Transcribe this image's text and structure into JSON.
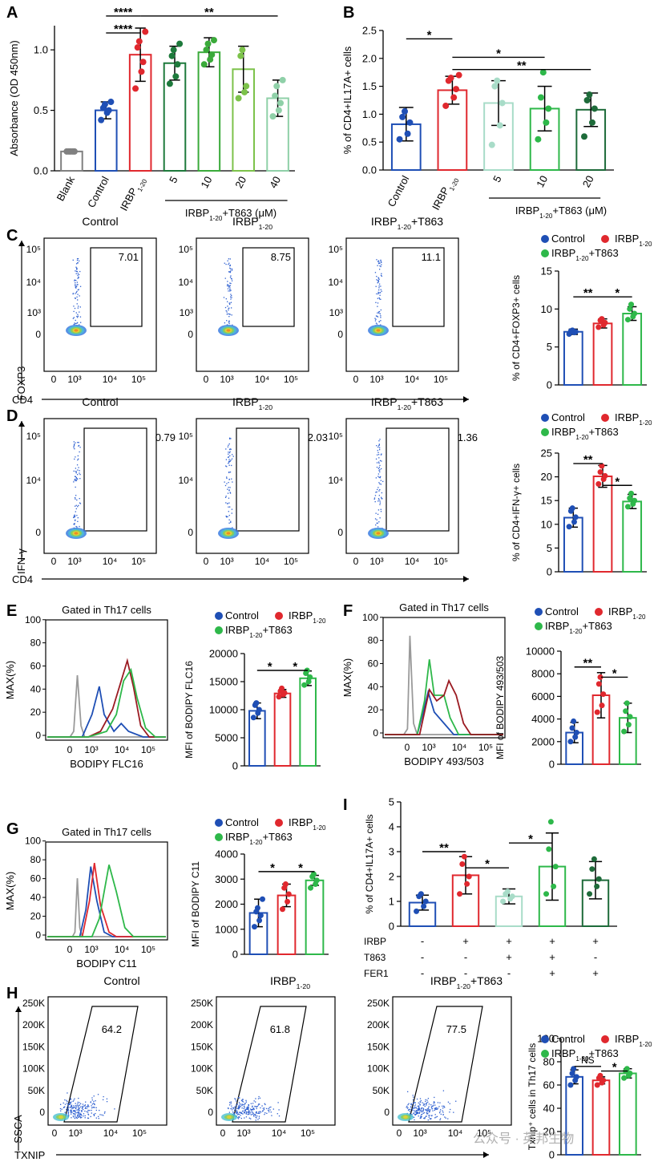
{
  "colors": {
    "blank": "#808080",
    "control": "#1f4fb5",
    "irbp": "#e0282e",
    "t5": "#1e7a3c",
    "t10": "#3aaa3a",
    "t20": "#7cc24a",
    "t40": "#8fd0a8",
    "green": "#2eb84a",
    "dkgreen": "#1e6b3a",
    "ltgreen": "#a8dcc8",
    "dred": "#9b1b22",
    "gray": "#9a9a9a"
  },
  "chart_data": [
    {
      "panel": "A",
      "type": "bar",
      "ylabel": "Absorbance (OD 450nm)",
      "ylim": [
        0,
        1.2
      ],
      "yticks": [
        "0.0",
        "0.5",
        "1.0"
      ],
      "categories": [
        "Blank",
        "Control",
        "IRBP",
        "5",
        "10",
        "20",
        "40"
      ],
      "cat_sub": [
        "",
        "",
        "1-20",
        "",
        "",
        "",
        ""
      ],
      "values": [
        0.16,
        0.5,
        0.96,
        0.89,
        0.98,
        0.84,
        0.6
      ],
      "errors": [
        0.01,
        0.07,
        0.22,
        0.14,
        0.12,
        0.19,
        0.15
      ],
      "points": [
        [
          0.16,
          0.16,
          0.16,
          0.16,
          0.16
        ],
        [
          0.42,
          0.48,
          0.5,
          0.52,
          0.55,
          0.57
        ],
        [
          0.68,
          0.82,
          0.9,
          1.02,
          1.07,
          1.15
        ],
        [
          0.72,
          0.78,
          0.88,
          0.95,
          1.0,
          1.05
        ],
        [
          0.88,
          0.92,
          0.96,
          1.0,
          1.05,
          1.08
        ],
        [
          0.6,
          0.65,
          0.7,
          0.95,
          1.0
        ],
        [
          0.45,
          0.5,
          0.56,
          0.62,
          0.7,
          0.75
        ]
      ],
      "colors": [
        "blank",
        "control",
        "irbp",
        "t5",
        "t10",
        "t20",
        "t40"
      ],
      "group_label": "IRBP",
      "group_sub": "1-20",
      "group_suffix": "+T863 (μM)",
      "sig": [
        {
          "a": 1,
          "b": 2,
          "y": 1.28,
          "label": "****"
        },
        {
          "a": 1,
          "b": 2,
          "y": 1.14,
          "label": "****"
        },
        {
          "a": 2,
          "b": 6,
          "y": 1.28,
          "label": "**"
        }
      ]
    },
    {
      "panel": "B",
      "type": "bar",
      "ylabel": "% of CD4+IL17A+ cells",
      "ylim": [
        0,
        2.5
      ],
      "yticks": [
        "0.0",
        "0.5",
        "1.0",
        "1.5",
        "2.0",
        "2.5"
      ],
      "categories": [
        "Control",
        "IRBP",
        "5",
        "10",
        "20"
      ],
      "cat_sub": [
        "",
        "1-20",
        "",
        "",
        ""
      ],
      "values": [
        0.82,
        1.43,
        1.2,
        1.1,
        1.08
      ],
      "errors": [
        0.3,
        0.25,
        0.4,
        0.4,
        0.3
      ],
      "points": [
        [
          0.55,
          0.65,
          0.85,
          0.95,
          1.05
        ],
        [
          1.15,
          1.3,
          1.45,
          1.6,
          1.65,
          1.7
        ],
        [
          0.45,
          0.8,
          1.2,
          1.5,
          1.6
        ],
        [
          0.55,
          0.85,
          1.1,
          1.3,
          1.75
        ],
        [
          0.6,
          0.85,
          1.1,
          1.25,
          1.35
        ]
      ],
      "colors": [
        "control",
        "irbp",
        "ltgreen",
        "green",
        "dkgreen"
      ],
      "group_label": "IRBP",
      "group_sub": "1-20",
      "group_suffix": "+T863 (μM)",
      "sig": [
        {
          "a": 0,
          "b": 1,
          "y": 2.35,
          "label": "*"
        },
        {
          "a": 1,
          "b": 3,
          "y": 2.02,
          "label": "*"
        },
        {
          "a": 1,
          "b": 4,
          "y": 1.8,
          "label": "**"
        }
      ]
    },
    {
      "panel": "C",
      "type": "bar",
      "ylabel": "% of CD4+FOXP3+ cells",
      "ylim": [
        0,
        15
      ],
      "yticks": [
        "0",
        "5",
        "10",
        "15"
      ],
      "values": [
        7.0,
        8.1,
        9.4
      ],
      "errors": [
        0.35,
        0.6,
        0.9
      ],
      "points": [
        [
          6.7,
          6.9,
          7.0,
          7.1,
          7.2
        ],
        [
          7.6,
          7.9,
          8.2,
          8.5,
          8.7
        ],
        [
          8.6,
          9.0,
          9.4,
          10.0,
          10.6
        ]
      ],
      "colors": [
        "control",
        "irbp",
        "green"
      ],
      "sig": [
        {
          "a": 0,
          "b": 1,
          "y": 11.6,
          "label": "**"
        },
        {
          "a": 1,
          "b": 2,
          "y": 11.6,
          "label": "*"
        }
      ]
    },
    {
      "panel": "D",
      "type": "bar",
      "ylabel": "% of CD4+IFN-γ+ cells",
      "ylim": [
        0,
        25
      ],
      "yticks": [
        "0",
        "5",
        "10",
        "15",
        "20",
        "25"
      ],
      "values": [
        11.4,
        20.1,
        14.8
      ],
      "errors": [
        2.0,
        2.3,
        1.5
      ],
      "points": [
        [
          9.5,
          10.5,
          11.5,
          12.8,
          13.4
        ],
        [
          18.5,
          19.5,
          20.2,
          21.0,
          22.3
        ],
        [
          13.7,
          14.3,
          15.0,
          15.5,
          16.5
        ]
      ],
      "colors": [
        "control",
        "irbp",
        "green"
      ],
      "sig": [
        {
          "a": 0,
          "b": 1,
          "y": 22.8,
          "label": "**"
        },
        {
          "a": 1,
          "b": 2,
          "y": 18.2,
          "label": "*"
        }
      ]
    },
    {
      "panel": "E",
      "type": "bar",
      "ylabel": "MFI of BODIPY FLC16",
      "ylim": [
        0,
        20000
      ],
      "yticks": [
        "0",
        "5000",
        "10000",
        "15000",
        "20000"
      ],
      "values": [
        9800,
        12900,
        15600
      ],
      "errors": [
        1400,
        700,
        1300
      ],
      "points": [
        [
          8600,
          9400,
          10000,
          10800,
          11200
        ],
        [
          12300,
          12700,
          13000,
          13300,
          13800
        ],
        [
          14400,
          15000,
          15800,
          16500,
          17000
        ]
      ],
      "colors": [
        "control",
        "irbp",
        "green"
      ],
      "sig": [
        {
          "a": 0,
          "b": 1,
          "y": 17000,
          "label": "*"
        },
        {
          "a": 1,
          "b": 2,
          "y": 17000,
          "label": "*"
        }
      ]
    },
    {
      "panel": "F",
      "type": "bar",
      "ylabel": "MFI of BODIPY 493/503",
      "ylim": [
        0,
        10000
      ],
      "yticks": [
        "0",
        "2000",
        "4000",
        "6000",
        "8000",
        "10000"
      ],
      "values": [
        2800,
        6100,
        4100
      ],
      "errors": [
        900,
        2000,
        1300
      ],
      "points": [
        [
          2000,
          2400,
          2800,
          3200,
          3800
        ],
        [
          4600,
          5200,
          6200,
          7100,
          7700
        ],
        [
          2900,
          3500,
          4200,
          4700,
          5400
        ]
      ],
      "colors": [
        "control",
        "irbp",
        "green"
      ],
      "sig": [
        {
          "a": 0,
          "b": 1,
          "y": 8600,
          "label": "**"
        },
        {
          "a": 1,
          "b": 2,
          "y": 7700,
          "label": "*"
        }
      ]
    },
    {
      "panel": "G",
      "type": "bar",
      "ylabel": "MFI of BODIPY C11",
      "ylim": [
        0,
        4000
      ],
      "yticks": [
        "0",
        "1000",
        "2000",
        "3000",
        "4000"
      ],
      "values": [
        1650,
        2350,
        2950
      ],
      "errors": [
        550,
        450,
        200
      ],
      "points": [
        [
          1100,
          1350,
          1550,
          1700,
          1850,
          2200
        ],
        [
          1800,
          2100,
          2400,
          2650,
          2800
        ],
        [
          2650,
          2800,
          2950,
          3100,
          3200
        ]
      ],
      "colors": [
        "control",
        "irbp",
        "green"
      ],
      "sig": [
        {
          "a": 0,
          "b": 1,
          "y": 3300,
          "label": "*"
        },
        {
          "a": 1,
          "b": 2,
          "y": 3300,
          "label": "*"
        }
      ]
    },
    {
      "panel": "I",
      "type": "bar",
      "ylabel": "% of CD4+IL17A+ cells",
      "ylim": [
        0,
        5
      ],
      "yticks": [
        "0",
        "1",
        "2",
        "3",
        "4",
        "5"
      ],
      "values": [
        0.95,
        2.05,
        1.2,
        2.4,
        1.85
      ],
      "errors": [
        0.3,
        0.75,
        0.3,
        1.35,
        0.75
      ],
      "points": [
        [
          0.6,
          0.8,
          1.0,
          1.2,
          1.3
        ],
        [
          1.3,
          1.7,
          2.0,
          2.5,
          2.8
        ],
        [
          1.0,
          1.1,
          1.2,
          1.3,
          1.4
        ],
        [
          1.3,
          1.6,
          2.4,
          3.1,
          4.2
        ],
        [
          1.3,
          1.6,
          1.9,
          2.3,
          2.7
        ]
      ],
      "colors": [
        "control",
        "irbp",
        "ltgreen",
        "green",
        "dkgreen"
      ],
      "sig": [
        {
          "a": 0,
          "b": 1,
          "y": 3.0,
          "label": "**"
        },
        {
          "a": 1,
          "b": 2,
          "y": 2.35,
          "label": "*"
        },
        {
          "a": 2,
          "b": 3,
          "y": 3.35,
          "label": "*"
        }
      ],
      "treat_rows": [
        {
          "label": "IRBP",
          "vals": [
            "-",
            "+",
            "+",
            "+",
            "+"
          ]
        },
        {
          "label": "T863",
          "vals": [
            "-",
            "-",
            "+",
            "+",
            "-"
          ]
        },
        {
          "label": "FER1",
          "vals": [
            "-",
            "-",
            "-",
            "+",
            "+"
          ]
        }
      ]
    },
    {
      "panel": "H",
      "type": "bar",
      "ylabel": "Txnip⁺ cells in Th17 cells",
      "ylim": [
        0,
        100
      ],
      "yticks": [
        "0",
        "20",
        "40",
        "60",
        "80",
        "100"
      ],
      "values": [
        67,
        64,
        70
      ],
      "errors": [
        6,
        3,
        4
      ],
      "points": [
        [
          60,
          64,
          67,
          70,
          74
        ],
        [
          60,
          62,
          64,
          66,
          68
        ],
        [
          66,
          68,
          70,
          72,
          74
        ]
      ],
      "colors": [
        "control",
        "irbp",
        "green"
      ],
      "sig": [
        {
          "a": 0,
          "b": 1,
          "y": 76,
          "label": "NS"
        },
        {
          "a": 1,
          "b": 2,
          "y": 72,
          "label": "*"
        }
      ]
    }
  ],
  "panel_labels": [
    "A",
    "B",
    "C",
    "D",
    "E",
    "F",
    "G",
    "H",
    "I"
  ],
  "legend": {
    "control": "Control",
    "irbp": "IRBP",
    "irbp_sub": "1-20",
    "irbp_t": "IRBP",
    "irbp_t_suffix": "+T863"
  },
  "flow": {
    "titles": [
      "Control",
      "IRBP",
      "IRBP"
    ],
    "title_suffix": [
      "",
      "",
      "+T863"
    ],
    "C": {
      "gates": [
        "7.01",
        "8.75",
        "11.1"
      ],
      "ylabel": "FOXP3",
      "xlabel": "CD4",
      "yticks": [
        "10⁵",
        "10⁴",
        "10³",
        "0"
      ],
      "xticks": [
        "0",
        "10³",
        "10⁴",
        "10⁵"
      ]
    },
    "D": {
      "gates": [
        "0.79",
        "2.03",
        "1.36"
      ],
      "ylabel": "IFN-γ",
      "xlabel": "CD4",
      "yticks": [
        "10⁵",
        "10⁴",
        "0"
      ],
      "xticks": [
        "0",
        "10³",
        "10⁴",
        "10⁵"
      ]
    },
    "H": {
      "gates": [
        "64.2",
        "61.8",
        "77.5"
      ],
      "ylabel": "SSCA",
      "xlabel": "TXNIP",
      "yticks": [
        "250K",
        "200K",
        "150K",
        "100K",
        "50K",
        "0"
      ],
      "xticks": [
        "0",
        "10³",
        "10⁴",
        "10⁵"
      ]
    }
  },
  "histograms": {
    "gated": "Gated in Th17 cells",
    "ylabel": "MAX(%)",
    "yticks": [
      "0",
      "20",
      "40",
      "60",
      "80",
      "100"
    ],
    "xticks": [
      "0",
      "10³",
      "10⁴",
      "10⁵"
    ],
    "E": {
      "xlabel": "BODIPY FLC16"
    },
    "F": {
      "xlabel": "BODIPY 493/503"
    },
    "G": {
      "xlabel": "BODIPY C11"
    }
  },
  "watermark": "公众号 · 英邦生物"
}
